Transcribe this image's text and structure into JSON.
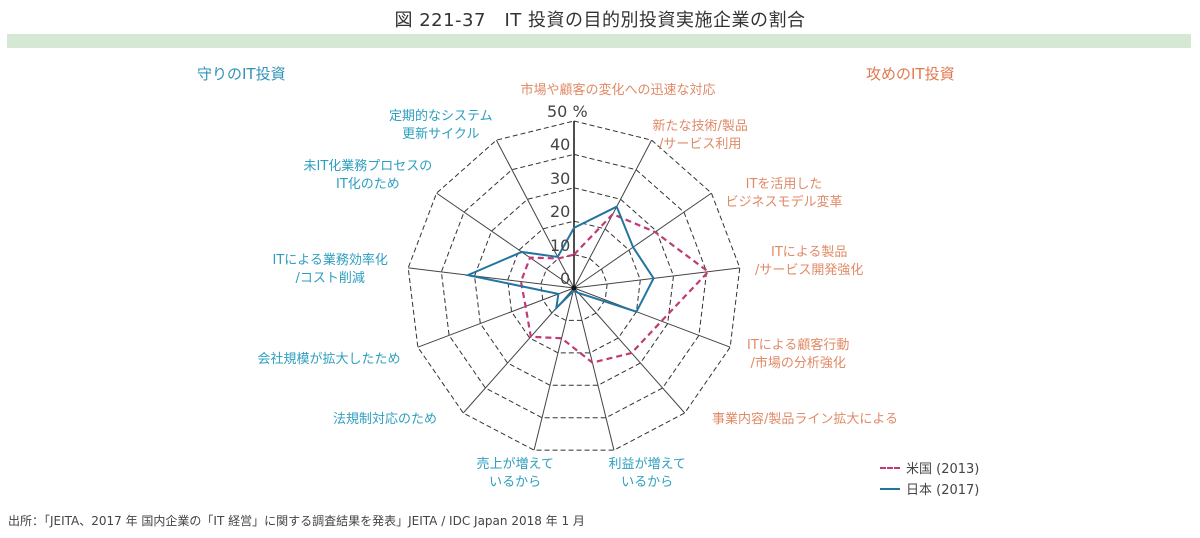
{
  "header": {
    "title": "図 221-37　IT 投資の目的別投資実施企業の割合",
    "band_color": "#d4e8d4"
  },
  "sections": {
    "defensive": "守りのIT投資",
    "offensive": "攻めのIT投資",
    "defensive_color": "#2e93b8",
    "offensive_color": "#e0784f"
  },
  "axis_labels": [
    {
      "line1": "市場や顧客の変化への迅速な対応",
      "line2": "",
      "group": "off"
    },
    {
      "line1": "新たな技術/製品",
      "line2": "/サービス利用",
      "group": "off"
    },
    {
      "line1": "ITを活用した",
      "line2": "ビジネスモデル変革",
      "group": "off"
    },
    {
      "line1": "ITによる製品",
      "line2": "/サービス開発強化",
      "group": "off"
    },
    {
      "line1": "ITによる顧客行動",
      "line2": "/市場の分析強化",
      "group": "off"
    },
    {
      "line1": "事業内容/製品ライン拡大による",
      "line2": "",
      "group": "off"
    },
    {
      "line1": "利益が増えて",
      "line2": "いるから",
      "group": "def"
    },
    {
      "line1": "売上が増えて",
      "line2": "いるから",
      "group": "def"
    },
    {
      "line1": "法規制対応のため",
      "line2": "",
      "group": "def"
    },
    {
      "line1": "会社規模が拡大したため",
      "line2": "",
      "group": "def"
    },
    {
      "line1": "ITによる業務効率化",
      "line2": "/コスト削減",
      "group": "def"
    },
    {
      "line1": "未IT化業務プロセスの",
      "line2": "IT化のため",
      "group": "def"
    },
    {
      "line1": "定期的なシステム",
      "line2": "更新サイクル",
      "group": "def"
    }
  ],
  "ticks": [
    "0",
    "10",
    "20",
    "30",
    "40",
    "50 %"
  ],
  "legend": {
    "us": "米国 (2013)",
    "jp": "日本 (2017)"
  },
  "source": "出所：「JEITA、2017 年 国内企業の「IT 経営」に関する調査結果を発表」JEITA / IDC Japan 2018 年 1 月",
  "chart_data": {
    "type": "radar",
    "title": "IT 投資の目的別投資実施企業の割合",
    "categories": [
      "市場や顧客の変化への迅速な対応",
      "新たな技術/製品/サービス利用",
      "ITを活用したビジネスモデル変革",
      "ITによる製品/サービス開発強化",
      "ITによる顧客行動/市場の分析強化",
      "事業内容/製品ライン拡大による",
      "利益が増えているから",
      "売上が増えているから",
      "法規制対応のため",
      "会社規模が拡大したため",
      "ITによる業務効率化/コスト削減",
      "未IT化業務プロセスのIT化のため",
      "定期的なシステム更新サイクル"
    ],
    "series": [
      {
        "name": "米国 (2013)",
        "style": "dashed",
        "color": "#c23a75",
        "values": [
          10,
          25,
          29.5,
          40.5,
          28,
          26,
          23,
          15.5,
          19.5,
          15.5,
          16,
          16,
          10
        ]
      },
      {
        "name": "日本 (2017)",
        "style": "solid",
        "color": "#2474a0",
        "values": [
          18,
          27.5,
          21.5,
          24,
          20,
          2,
          1,
          1,
          8,
          5,
          32,
          19,
          10.5
        ]
      }
    ],
    "rlim": [
      0,
      50
    ],
    "r_ticks": [
      0,
      10,
      20,
      30,
      40,
      50
    ],
    "unit": "%",
    "groups": {
      "offensive": "攻めのIT投資",
      "defensive": "守りのIT投資"
    },
    "legend_position": "bottom-right",
    "grid": true
  }
}
